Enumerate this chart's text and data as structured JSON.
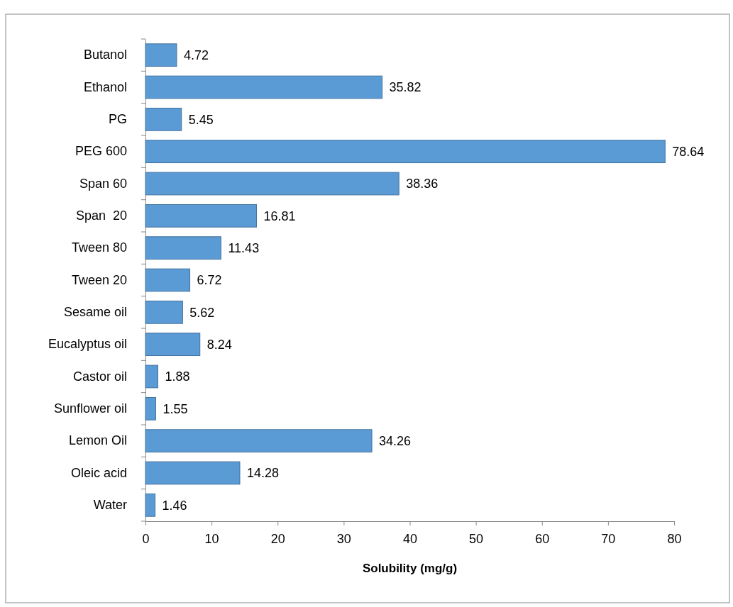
{
  "chart_data": {
    "type": "bar",
    "orientation": "horizontal",
    "xlabel": "Solubility (mg/g)",
    "categories": [
      "Butanol",
      "Ethanol",
      "PG",
      "PEG 600",
      "Span 60",
      "Span  20",
      "Tween 80",
      "Tween 20",
      "Sesame oil",
      "Eucalyptus oil",
      "Castor oil",
      "Sunflower oil",
      "Lemon Oil",
      "Oleic acid",
      "Water"
    ],
    "values": [
      4.72,
      35.82,
      5.45,
      78.64,
      38.36,
      16.81,
      11.43,
      6.72,
      5.62,
      8.24,
      1.88,
      1.55,
      34.26,
      14.28,
      1.46
    ],
    "color": "#5b9bd5",
    "xlim": [
      0,
      80
    ],
    "xticks": [
      0,
      10,
      20,
      30,
      40,
      50,
      60,
      70,
      80
    ],
    "data_labels": true
  }
}
